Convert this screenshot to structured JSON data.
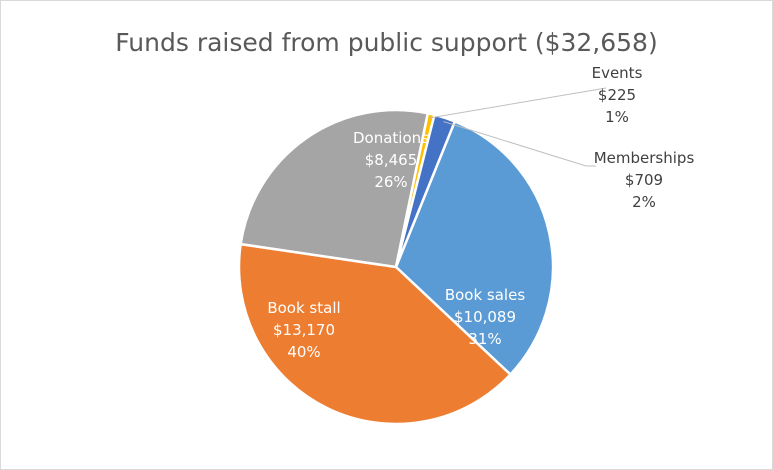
{
  "chart_data": {
    "type": "pie",
    "title": "Funds raised from public support ($32,658)",
    "slices": [
      {
        "category": "Book sales",
        "value": 10089,
        "value_label": "$10,089",
        "percent_label": "31%",
        "color": "#5b9bd5"
      },
      {
        "category": "Book stall",
        "value": 13170,
        "value_label": "$13,170",
        "percent_label": "40%",
        "color": "#ed7d31"
      },
      {
        "category": "Donations",
        "value": 8465,
        "value_label": "$8,465",
        "percent_label": "26%",
        "color": "#a5a5a5"
      },
      {
        "category": "Events",
        "value": 225,
        "value_label": "$225",
        "percent_label": "1%",
        "color": "#ffc000"
      },
      {
        "category": "Memberships",
        "value": 709,
        "value_label": "$709",
        "percent_label": "2%",
        "color": "#4472c4"
      }
    ]
  }
}
